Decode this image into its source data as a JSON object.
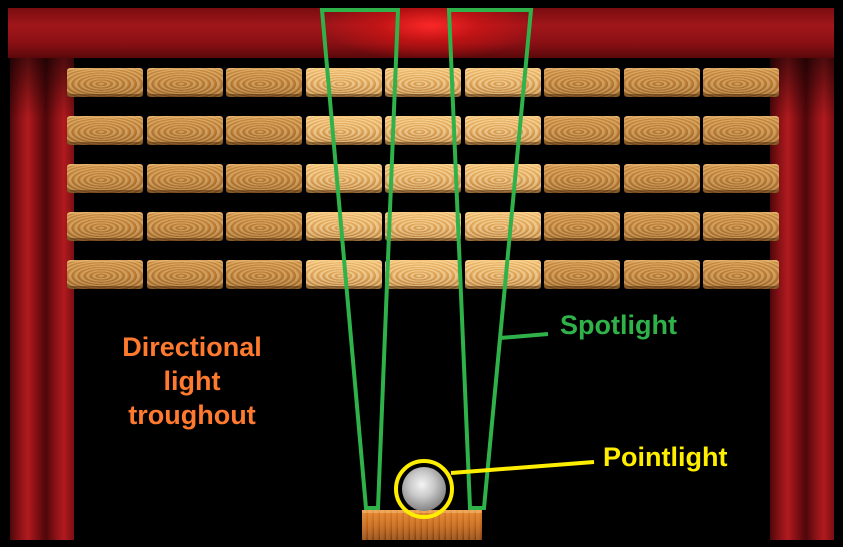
{
  "labels": {
    "directional_line1": "Directional",
    "directional_line2": "light",
    "directional_line3": "troughout",
    "spotlight": "Spotlight",
    "pointlight": "Pointlight"
  },
  "colors": {
    "directional": "#ff7a2e",
    "spotlight": "#2fb24a",
    "pointlight": "#ffee00",
    "curtain": "#a0161a",
    "wood": "#c98a3f"
  },
  "scene": {
    "plank_rows": 5,
    "plank_columns": 9
  }
}
